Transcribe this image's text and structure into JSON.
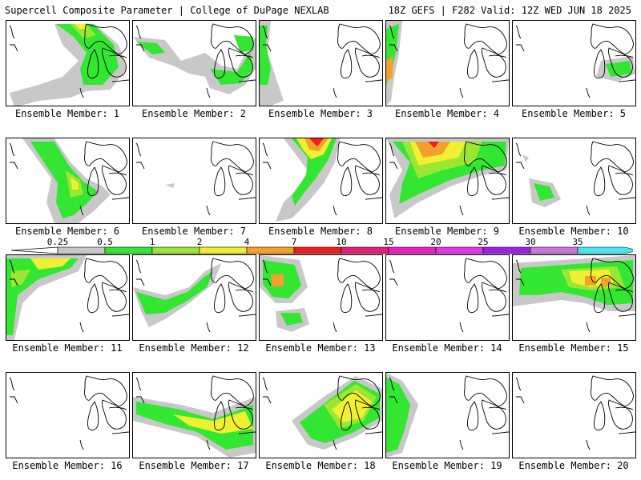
{
  "header": {
    "left": "Supercell Composite Parameter | College of DuPage NEXLAB",
    "right": "18Z GEFS | F282 Valid: 12Z WED JUN 18 2025"
  },
  "colorbar": {
    "labels": [
      "0.25",
      "0.5",
      "1",
      "2",
      "4",
      "7",
      "10",
      "15",
      "20",
      "25",
      "30",
      "35"
    ],
    "colors": [
      "#c8c8c8",
      "#32e632",
      "#9be632",
      "#f0f032",
      "#f5a028",
      "#f01e1e",
      "#e61e78",
      "#f01ec8",
      "#e632f0",
      "#a01ee6",
      "#c878dc",
      "#46e6f0"
    ]
  },
  "panels": [
    {
      "label": "Ensemble Member: 1"
    },
    {
      "label": "Ensemble Member: 2"
    },
    {
      "label": "Ensemble Member: 3"
    },
    {
      "label": "Ensemble Member: 4"
    },
    {
      "label": "Ensemble Member: 5"
    },
    {
      "label": "Ensemble Member: 6"
    },
    {
      "label": "Ensemble Member: 7"
    },
    {
      "label": "Ensemble Member: 8"
    },
    {
      "label": "Ensemble Member: 9"
    },
    {
      "label": "Ensemble Member: 10"
    },
    {
      "label": "Ensemble Member: 11"
    },
    {
      "label": "Ensemble Member: 12"
    },
    {
      "label": "Ensemble Member: 13"
    },
    {
      "label": "Ensemble Member: 14"
    },
    {
      "label": "Ensemble Member: 15"
    },
    {
      "label": "Ensemble Member: 16"
    },
    {
      "label": "Ensemble Member: 17"
    },
    {
      "label": "Ensemble Member: 18"
    },
    {
      "label": "Ensemble Member: 19"
    },
    {
      "label": "Ensemble Member: 20"
    }
  ]
}
